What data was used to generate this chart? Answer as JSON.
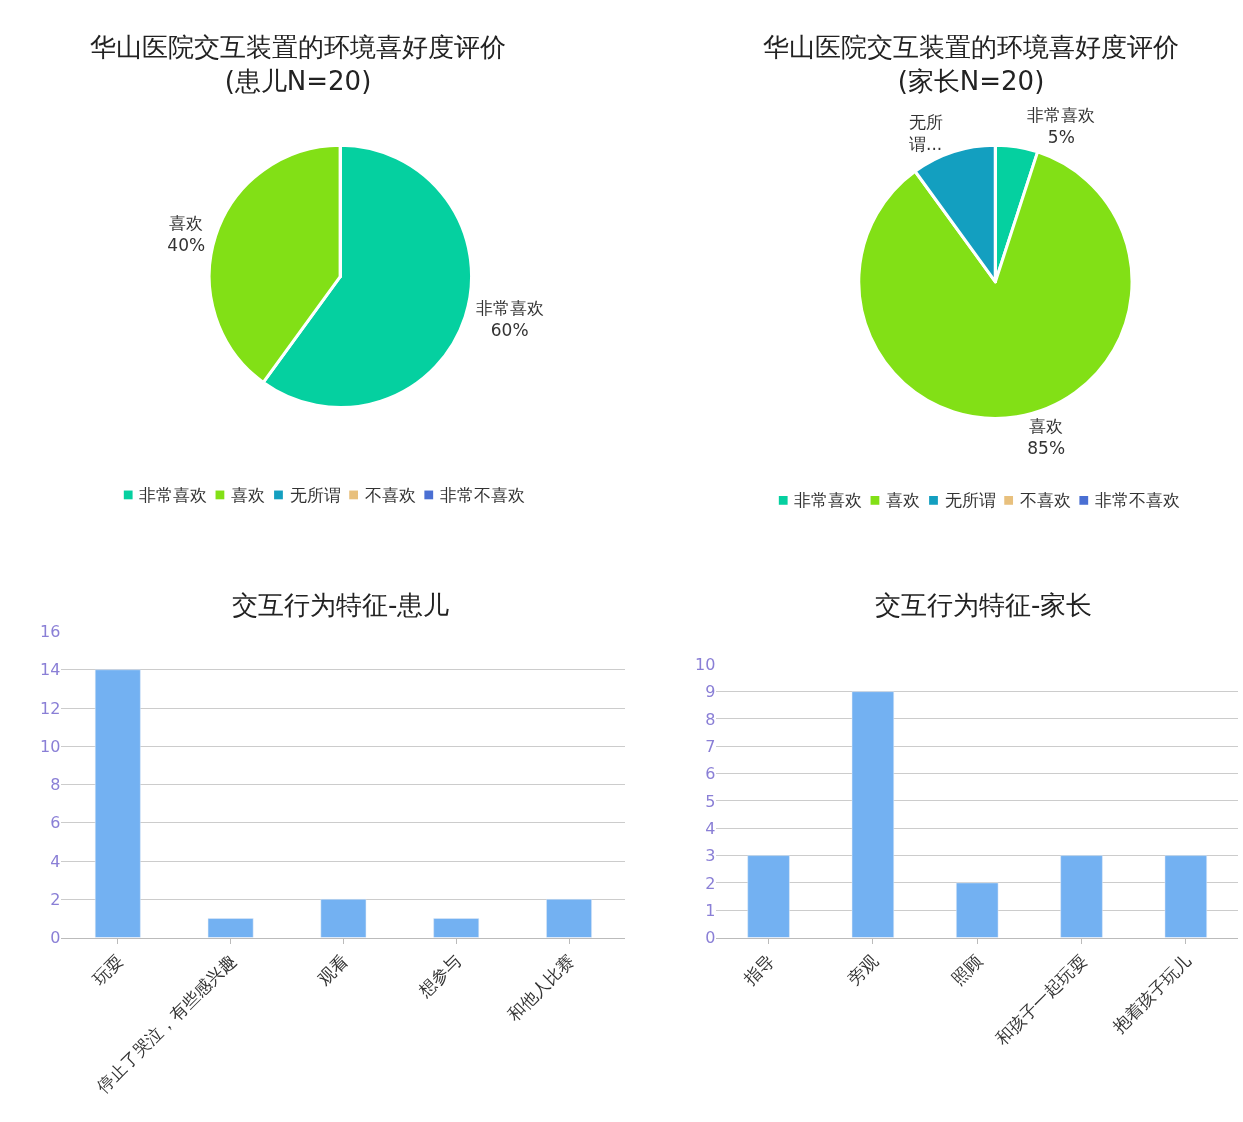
{
  "chart_data": [
    {
      "type": "pie",
      "title": "华山医院交互装置的环境喜好度评价\n(患儿N=20)",
      "categories": [
        "非常喜欢",
        "喜欢",
        "无所谓",
        "不喜欢",
        "非常不喜欢"
      ],
      "values": [
        60,
        40,
        0,
        0,
        0
      ],
      "colors": [
        "#05d0a0",
        "#82e016",
        "#139fc0",
        "#e8c07d",
        "#4a6fd3"
      ],
      "value_labels": [
        "非常喜欢\n60%",
        "喜欢\n40%",
        null,
        null,
        null
      ],
      "legend": "bottom"
    },
    {
      "type": "pie",
      "title": "华山医院交互装置的环境喜好度评价\n(家长N=20)",
      "categories": [
        "非常喜欢",
        "喜欢",
        "无所谓",
        "不喜欢",
        "非常不喜欢"
      ],
      "values": [
        5,
        85,
        10,
        0,
        0
      ],
      "colors": [
        "#05d0a0",
        "#82e016",
        "#139fc0",
        "#e8c07d",
        "#4a6fd3"
      ],
      "value_labels": [
        "非常喜欢\n5%",
        "喜欢\n85%",
        "无所谓...",
        null,
        null
      ],
      "legend": "bottom"
    },
    {
      "type": "bar",
      "title": "交互行为特征-患儿",
      "categories": [
        "玩耍",
        "停止了哭泣，有些感兴趣",
        "观看",
        "想参与",
        "和他人比赛"
      ],
      "values": [
        14,
        1,
        2,
        1,
        2
      ],
      "color": "#73b1f2",
      "ylim": [
        0,
        16
      ],
      "yticks": [
        0,
        2,
        4,
        6,
        8,
        10,
        12,
        14,
        16
      ],
      "grid": "y"
    },
    {
      "type": "bar",
      "title": "交互行为特征-家长",
      "categories": [
        "指导",
        "旁观",
        "照顾",
        "和孩子一起玩耍",
        "抱着孩子玩儿"
      ],
      "values": [
        3,
        9,
        2,
        3,
        3
      ],
      "color": "#73b1f2",
      "ylim": [
        0,
        10
      ],
      "yticks": [
        0,
        1,
        2,
        3,
        4,
        5,
        6,
        7,
        8,
        9,
        10
      ],
      "grid": "y"
    }
  ]
}
